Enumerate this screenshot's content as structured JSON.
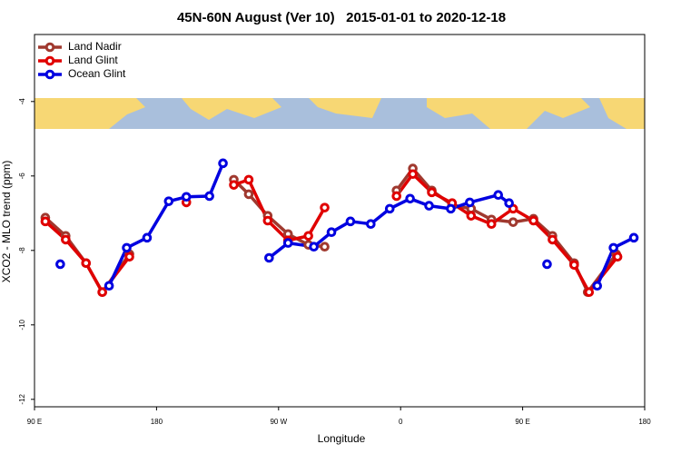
{
  "chart_data": {
    "type": "line",
    "title": "45N-60N August (Ver 10)   2015-01-01 to 2020-12-18",
    "xlabel": "Longitude",
    "ylabel": "XCO2 - MLO trend (ppm)",
    "xlim": [
      90,
      540
    ],
    "ylim": [
      -12.2,
      -2.2
    ],
    "xticks": [
      {
        "value": 90,
        "label": "90 E"
      },
      {
        "value": 180,
        "label": "180"
      },
      {
        "value": 270,
        "label": "90 W"
      },
      {
        "value": 360,
        "label": "0"
      },
      {
        "value": 450,
        "label": "90 E"
      },
      {
        "value": 540,
        "label": "180"
      }
    ],
    "yticks": [
      -12,
      -10,
      -8,
      -6,
      -4
    ],
    "legend": "top-left",
    "series": [
      {
        "name": "Land Nadir",
        "color": "#a0392f",
        "x": [
          98,
          113,
          128,
          140,
          160,
          null,
          237,
          248,
          262,
          277,
          292,
          304,
          null,
          357,
          369,
          383,
          398,
          412,
          427,
          443,
          458,
          472,
          488,
          498,
          519
        ],
        "values": [
          -7.12,
          -7.61,
          -8.34,
          -9.12,
          -8.1,
          null,
          -6.1,
          -6.49,
          -7.07,
          -7.56,
          -7.85,
          -7.9,
          null,
          -6.39,
          -5.8,
          -6.39,
          -6.78,
          -6.88,
          -7.17,
          -7.24,
          -7.15,
          -7.61,
          -8.34,
          -9.12,
          -8.1
        ]
      },
      {
        "name": "Land Glint",
        "color": "#e00000",
        "x": [
          98,
          113,
          128,
          140,
          160,
          null,
          202,
          null,
          237,
          248,
          262,
          277,
          292,
          304,
          null,
          357,
          369,
          383,
          398,
          412,
          427,
          443,
          458,
          472,
          488,
          499,
          520
        ],
        "values": [
          -7.22,
          -7.71,
          -8.34,
          -9.12,
          -8.17,
          null,
          -6.71,
          null,
          -6.24,
          -6.1,
          -7.2,
          -7.73,
          -7.61,
          -6.85,
          null,
          -6.54,
          -5.95,
          -6.44,
          -6.73,
          -7.07,
          -7.29,
          -6.88,
          -7.2,
          -7.71,
          -8.39,
          -9.12,
          -8.17
        ]
      },
      {
        "name": "Ocean Glint",
        "color": "#0000e0",
        "x": [
          109,
          null,
          145,
          158,
          173,
          189,
          202,
          219,
          229,
          null,
          263,
          277,
          296,
          309,
          323,
          338,
          352,
          367,
          381,
          397,
          411,
          432,
          440,
          null,
          468,
          null,
          505,
          517,
          532
        ],
        "values": [
          -8.37,
          null,
          -8.95,
          -7.93,
          -7.66,
          -6.68,
          -6.56,
          -6.54,
          -5.66,
          null,
          -8.2,
          -7.8,
          -7.9,
          -7.51,
          -7.22,
          -7.29,
          -6.88,
          -6.61,
          -6.8,
          -6.88,
          -6.71,
          -6.51,
          -6.73,
          null,
          -8.37,
          null,
          -8.95,
          -7.93,
          -7.66
        ]
      }
    ]
  }
}
